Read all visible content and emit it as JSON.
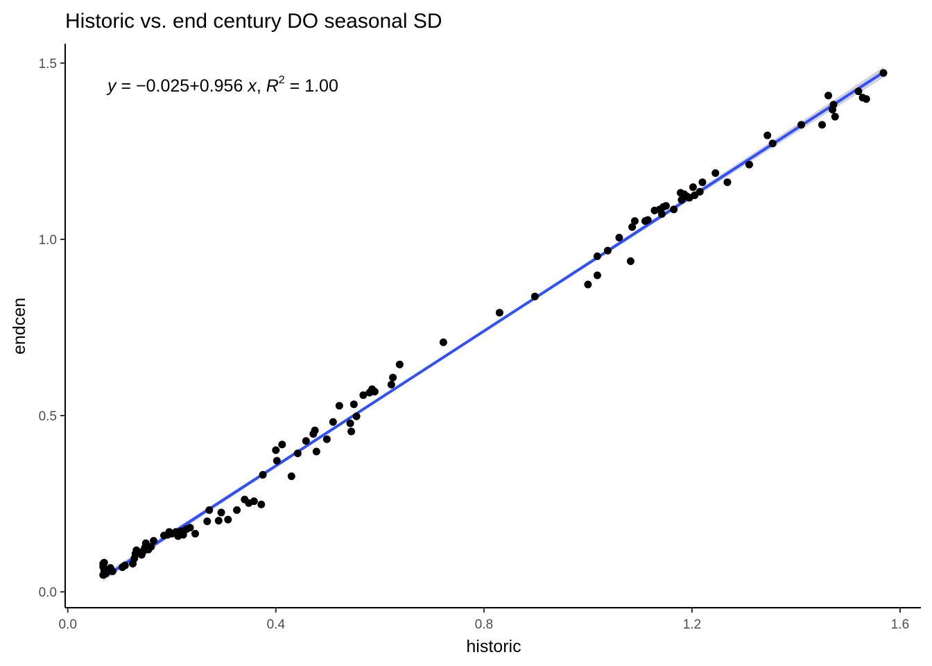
{
  "chart_data": {
    "type": "scatter",
    "title": "Historic vs. end century DO seasonal SD",
    "xlabel": "historic",
    "ylabel": "endcen",
    "xlim": [
      -0.005,
      1.64
    ],
    "ylim": [
      -0.045,
      1.555
    ],
    "x_ticks": [
      0.0,
      0.4,
      0.8,
      1.2,
      1.6
    ],
    "x_tick_labels": [
      "0.0",
      "0.4",
      "0.8",
      "1.2",
      "1.6"
    ],
    "y_ticks": [
      0.0,
      0.5,
      1.0,
      1.5
    ],
    "y_tick_labels": [
      "0.0",
      "0.5",
      "1.0",
      "1.5"
    ],
    "grid": false,
    "legend": "none",
    "point_color": "#000000",
    "line_color": "#3050f8",
    "ribbon_color": "#b3b3cc",
    "annotation": {
      "y_var": "y",
      "equals": "=",
      "minus": "−",
      "intercept": "0.025",
      "plus": "+",
      "slope": "0.956",
      "x_var": "x",
      "comma": ",",
      "r_var": "R",
      "r_exp": "2",
      "r_value": "1.00"
    },
    "fit": {
      "intercept": -0.025,
      "slope": 0.956,
      "x_range": [
        0.068,
        1.568
      ]
    },
    "points": [
      [
        0.068,
        0.08
      ],
      [
        0.07,
        0.083
      ],
      [
        0.068,
        0.071
      ],
      [
        0.07,
        0.06
      ],
      [
        0.068,
        0.048
      ],
      [
        0.073,
        0.052
      ],
      [
        0.078,
        0.063
      ],
      [
        0.082,
        0.068
      ],
      [
        0.086,
        0.058
      ],
      [
        0.105,
        0.07
      ],
      [
        0.11,
        0.075
      ],
      [
        0.125,
        0.08
      ],
      [
        0.128,
        0.095
      ],
      [
        0.13,
        0.108
      ],
      [
        0.132,
        0.118
      ],
      [
        0.14,
        0.112
      ],
      [
        0.142,
        0.105
      ],
      [
        0.145,
        0.115
      ],
      [
        0.148,
        0.125
      ],
      [
        0.15,
        0.138
      ],
      [
        0.155,
        0.12
      ],
      [
        0.16,
        0.128
      ],
      [
        0.165,
        0.145
      ],
      [
        0.185,
        0.16
      ],
      [
        0.192,
        0.162
      ],
      [
        0.195,
        0.17
      ],
      [
        0.2,
        0.165
      ],
      [
        0.208,
        0.17
      ],
      [
        0.212,
        0.158
      ],
      [
        0.218,
        0.172
      ],
      [
        0.222,
        0.162
      ],
      [
        0.228,
        0.178
      ],
      [
        0.235,
        0.182
      ],
      [
        0.245,
        0.165
      ],
      [
        0.268,
        0.2
      ],
      [
        0.272,
        0.232
      ],
      [
        0.29,
        0.202
      ],
      [
        0.295,
        0.225
      ],
      [
        0.308,
        0.205
      ],
      [
        0.325,
        0.232
      ],
      [
        0.34,
        0.262
      ],
      [
        0.348,
        0.252
      ],
      [
        0.358,
        0.257
      ],
      [
        0.372,
        0.248
      ],
      [
        0.375,
        0.332
      ],
      [
        0.4,
        0.402
      ],
      [
        0.402,
        0.372
      ],
      [
        0.412,
        0.418
      ],
      [
        0.43,
        0.328
      ],
      [
        0.442,
        0.393
      ],
      [
        0.458,
        0.428
      ],
      [
        0.472,
        0.448
      ],
      [
        0.475,
        0.458
      ],
      [
        0.478,
        0.398
      ],
      [
        0.498,
        0.433
      ],
      [
        0.51,
        0.482
      ],
      [
        0.522,
        0.528
      ],
      [
        0.543,
        0.478
      ],
      [
        0.545,
        0.455
      ],
      [
        0.55,
        0.532
      ],
      [
        0.555,
        0.498
      ],
      [
        0.568,
        0.558
      ],
      [
        0.58,
        0.565
      ],
      [
        0.585,
        0.575
      ],
      [
        0.59,
        0.568
      ],
      [
        0.622,
        0.588
      ],
      [
        0.625,
        0.608
      ],
      [
        0.638,
        0.645
      ],
      [
        0.722,
        0.708
      ],
      [
        0.83,
        0.792
      ],
      [
        0.898,
        0.838
      ],
      [
        1.0,
        0.872
      ],
      [
        1.018,
        0.898
      ],
      [
        1.018,
        0.952
      ],
      [
        1.038,
        0.968
      ],
      [
        1.06,
        1.005
      ],
      [
        1.082,
        0.938
      ],
      [
        1.085,
        1.035
      ],
      [
        1.09,
        1.052
      ],
      [
        1.11,
        1.052
      ],
      [
        1.115,
        1.055
      ],
      [
        1.128,
        1.082
      ],
      [
        1.138,
        1.085
      ],
      [
        1.142,
        1.072
      ],
      [
        1.145,
        1.092
      ],
      [
        1.15,
        1.095
      ],
      [
        1.165,
        1.085
      ],
      [
        1.178,
        1.132
      ],
      [
        1.18,
        1.112
      ],
      [
        1.185,
        1.128
      ],
      [
        1.19,
        1.122
      ],
      [
        1.195,
        1.118
      ],
      [
        1.202,
        1.148
      ],
      [
        1.205,
        1.125
      ],
      [
        1.215,
        1.135
      ],
      [
        1.22,
        1.162
      ],
      [
        1.245,
        1.188
      ],
      [
        1.268,
        1.162
      ],
      [
        1.31,
        1.212
      ],
      [
        1.345,
        1.295
      ],
      [
        1.355,
        1.272
      ],
      [
        1.41,
        1.325
      ],
      [
        1.45,
        1.325
      ],
      [
        1.462,
        1.408
      ],
      [
        1.47,
        1.368
      ],
      [
        1.472,
        1.382
      ],
      [
        1.475,
        1.348
      ],
      [
        1.52,
        1.42
      ],
      [
        1.528,
        1.402
      ],
      [
        1.535,
        1.398
      ],
      [
        1.568,
        1.472
      ]
    ]
  }
}
